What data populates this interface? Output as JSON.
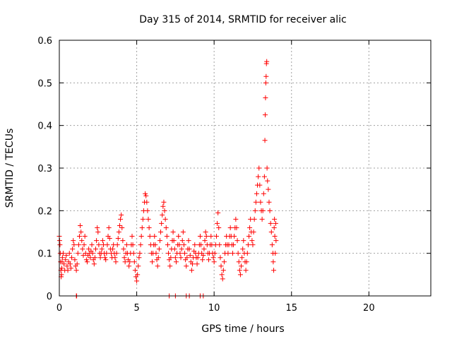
{
  "chart_data": {
    "type": "scatter",
    "title": "Day 315 of 2014, SRMTID for receiver alic",
    "xlabel": "GPS time / hours",
    "ylabel": "SRMTID / TECUs",
    "xlim": [
      0,
      24
    ],
    "ylim": [
      0,
      0.6
    ],
    "xticks": [
      0,
      5,
      10,
      15,
      20
    ],
    "yticks": [
      0,
      0.1,
      0.2,
      0.3,
      0.4,
      0.5,
      0.6
    ],
    "xtick_labels": [
      "0",
      "5",
      "10",
      "15",
      "20"
    ],
    "ytick_labels": [
      "0",
      "0.1",
      "0.2",
      "0.3",
      "0.4",
      "0.5",
      "0.6"
    ],
    "grid": true,
    "marker": "+",
    "color": "#ff0000",
    "series": [
      {
        "name": "SRMTID",
        "points": [
          [
            0.0,
            0.14
          ],
          [
            0.02,
            0.13
          ],
          [
            0.04,
            0.12
          ],
          [
            0.06,
            0.1
          ],
          [
            0.08,
            0.08
          ],
          [
            0.1,
            0.06
          ],
          [
            0.12,
            0.045
          ],
          [
            0.14,
            0.05
          ],
          [
            0.16,
            0.065
          ],
          [
            0.18,
            0.08
          ],
          [
            0.2,
            0.09
          ],
          [
            0.25,
            0.1
          ],
          [
            0.3,
            0.075
          ],
          [
            0.35,
            0.06
          ],
          [
            0.4,
            0.085
          ],
          [
            0.45,
            0.095
          ],
          [
            0.5,
            0.07
          ],
          [
            0.55,
            0.06
          ],
          [
            0.6,
            0.08
          ],
          [
            0.65,
            0.1
          ],
          [
            0.7,
            0.075
          ],
          [
            0.75,
            0.065
          ],
          [
            0.8,
            0.09
          ],
          [
            0.85,
            0.11
          ],
          [
            0.9,
            0.13
          ],
          [
            0.95,
            0.12
          ],
          [
            1.0,
            0.085
          ],
          [
            1.05,
            0.07
          ],
          [
            1.1,
            0.06
          ],
          [
            1.15,
            0.075
          ],
          [
            1.2,
            0.1
          ],
          [
            1.25,
            0.12
          ],
          [
            1.3,
            0.14
          ],
          [
            1.35,
            0.165
          ],
          [
            1.4,
            0.15
          ],
          [
            1.45,
            0.13
          ],
          [
            1.5,
            0.11
          ],
          [
            1.55,
            0.095
          ],
          [
            1.6,
            0.12
          ],
          [
            1.65,
            0.14
          ],
          [
            1.7,
            0.1
          ],
          [
            1.75,
            0.085
          ],
          [
            1.8,
            0.08
          ],
          [
            1.85,
            0.095
          ],
          [
            1.9,
            0.11
          ],
          [
            1.95,
            0.1
          ],
          [
            2.0,
            0.09
          ],
          [
            2.05,
            0.105
          ],
          [
            2.1,
            0.12
          ],
          [
            2.15,
            0.1
          ],
          [
            2.2,
            0.085
          ],
          [
            2.25,
            0.075
          ],
          [
            2.3,
            0.09
          ],
          [
            2.35,
            0.11
          ],
          [
            2.4,
            0.13
          ],
          [
            2.45,
            0.16
          ],
          [
            2.5,
            0.15
          ],
          [
            2.55,
            0.12
          ],
          [
            2.6,
            0.1
          ],
          [
            2.65,
            0.09
          ],
          [
            2.7,
            0.1
          ],
          [
            2.75,
            0.11
          ],
          [
            2.8,
            0.13
          ],
          [
            2.85,
            0.12
          ],
          [
            2.9,
            0.1
          ],
          [
            2.95,
            0.09
          ],
          [
            3.0,
            0.085
          ],
          [
            3.05,
            0.1
          ],
          [
            3.1,
            0.12
          ],
          [
            3.15,
            0.14
          ],
          [
            3.2,
            0.16
          ],
          [
            3.25,
            0.135
          ],
          [
            3.3,
            0.11
          ],
          [
            3.35,
            0.1
          ],
          [
            3.4,
            0.09
          ],
          [
            3.45,
            0.11
          ],
          [
            3.5,
            0.12
          ],
          [
            3.55,
            0.1
          ],
          [
            3.6,
            0.09
          ],
          [
            3.65,
            0.08
          ],
          [
            3.7,
            0.1
          ],
          [
            3.75,
            0.12
          ],
          [
            3.8,
            0.135
          ],
          [
            3.85,
            0.15
          ],
          [
            3.9,
            0.165
          ],
          [
            3.95,
            0.18
          ],
          [
            4.0,
            0.19
          ],
          [
            4.05,
            0.16
          ],
          [
            4.1,
            0.13
          ],
          [
            4.15,
            0.11
          ],
          [
            4.2,
            0.09
          ],
          [
            4.25,
            0.08
          ],
          [
            4.3,
            0.1
          ],
          [
            4.35,
            0.12
          ],
          [
            4.4,
            0.1
          ],
          [
            4.45,
            0.085
          ],
          [
            4.5,
            0.07
          ],
          [
            4.55,
            0.08
          ],
          [
            4.6,
            0.1
          ],
          [
            4.65,
            0.12
          ],
          [
            4.7,
            0.14
          ],
          [
            4.75,
            0.12
          ],
          [
            4.8,
            0.1
          ],
          [
            4.85,
            0.08
          ],
          [
            4.9,
            0.06
          ],
          [
            4.95,
            0.045
          ],
          [
            5.0,
            0.035
          ],
          [
            5.05,
            0.05
          ],
          [
            5.1,
            0.07
          ],
          [
            5.15,
            0.09
          ],
          [
            5.2,
            0.1
          ],
          [
            5.25,
            0.12
          ],
          [
            5.3,
            0.14
          ],
          [
            5.35,
            0.16
          ],
          [
            5.4,
            0.18
          ],
          [
            5.45,
            0.2
          ],
          [
            5.5,
            0.22
          ],
          [
            5.55,
            0.24
          ],
          [
            5.6,
            0.235
          ],
          [
            5.65,
            0.22
          ],
          [
            5.7,
            0.2
          ],
          [
            5.75,
            0.18
          ],
          [
            5.8,
            0.16
          ],
          [
            5.85,
            0.14
          ],
          [
            5.9,
            0.12
          ],
          [
            5.95,
            0.1
          ],
          [
            6.0,
            0.08
          ],
          [
            6.05,
            0.1
          ],
          [
            6.1,
            0.12
          ],
          [
            6.15,
            0.14
          ],
          [
            6.2,
            0.12
          ],
          [
            6.25,
            0.1
          ],
          [
            6.3,
            0.085
          ],
          [
            6.35,
            0.07
          ],
          [
            6.4,
            0.09
          ],
          [
            6.45,
            0.11
          ],
          [
            6.5,
            0.13
          ],
          [
            6.55,
            0.15
          ],
          [
            6.6,
            0.17
          ],
          [
            6.65,
            0.19
          ],
          [
            6.7,
            0.21
          ],
          [
            6.75,
            0.22
          ],
          [
            6.8,
            0.2
          ],
          [
            6.85,
            0.18
          ],
          [
            6.9,
            0.16
          ],
          [
            6.95,
            0.14
          ],
          [
            7.0,
            0.12
          ],
          [
            7.05,
            0.1
          ],
          [
            7.1,
            0.085
          ],
          [
            7.15,
            0.07
          ],
          [
            7.2,
            0.09
          ],
          [
            7.25,
            0.11
          ],
          [
            7.3,
            0.13
          ],
          [
            7.35,
            0.15
          ],
          [
            7.4,
            0.13
          ],
          [
            7.45,
            0.11
          ],
          [
            7.5,
            0.09
          ],
          [
            7.55,
            0.08
          ],
          [
            7.6,
            0.1
          ],
          [
            7.65,
            0.12
          ],
          [
            7.7,
            0.14
          ],
          [
            7.75,
            0.12
          ],
          [
            7.8,
            0.1
          ],
          [
            7.85,
            0.09
          ],
          [
            7.9,
            0.11
          ],
          [
            7.95,
            0.13
          ],
          [
            8.0,
            0.15
          ],
          [
            8.05,
            0.12
          ],
          [
            8.1,
            0.1
          ],
          [
            8.15,
            0.085
          ],
          [
            8.2,
            0.07
          ],
          [
            8.25,
            0.09
          ],
          [
            8.3,
            0.11
          ],
          [
            8.35,
            0.13
          ],
          [
            8.4,
            0.11
          ],
          [
            8.45,
            0.095
          ],
          [
            8.5,
            0.08
          ],
          [
            8.55,
            0.06
          ],
          [
            8.6,
            0.075
          ],
          [
            8.65,
            0.09
          ],
          [
            8.7,
            0.105
          ],
          [
            8.75,
            0.12
          ],
          [
            8.8,
            0.1
          ],
          [
            8.85,
            0.09
          ],
          [
            8.9,
            0.075
          ],
          [
            8.95,
            0.09
          ],
          [
            9.0,
            0.1
          ],
          [
            9.05,
            0.12
          ],
          [
            9.1,
            0.14
          ],
          [
            9.15,
            0.12
          ],
          [
            9.2,
            0.1
          ],
          [
            9.25,
            0.085
          ],
          [
            9.3,
            0.095
          ],
          [
            9.35,
            0.11
          ],
          [
            9.4,
            0.13
          ],
          [
            9.45,
            0.15
          ],
          [
            9.5,
            0.14
          ],
          [
            9.55,
            0.12
          ],
          [
            9.6,
            0.1
          ],
          [
            9.65,
            0.085
          ],
          [
            9.7,
            0.1
          ],
          [
            9.75,
            0.12
          ],
          [
            9.8,
            0.14
          ],
          [
            9.85,
            0.12
          ],
          [
            9.9,
            0.1
          ],
          [
            9.95,
            0.09
          ],
          [
            10.0,
            0.08
          ],
          [
            10.05,
            0.1
          ],
          [
            10.1,
            0.12
          ],
          [
            10.15,
            0.14
          ],
          [
            10.2,
            0.17
          ],
          [
            10.25,
            0.195
          ],
          [
            10.3,
            0.16
          ],
          [
            10.35,
            0.12
          ],
          [
            10.4,
            0.09
          ],
          [
            10.45,
            0.07
          ],
          [
            10.5,
            0.05
          ],
          [
            10.55,
            0.04
          ],
          [
            10.6,
            0.06
          ],
          [
            10.65,
            0.08
          ],
          [
            10.7,
            0.1
          ],
          [
            10.75,
            0.12
          ],
          [
            10.8,
            0.14
          ],
          [
            10.85,
            0.12
          ],
          [
            10.9,
            0.1
          ],
          [
            10.95,
            0.12
          ],
          [
            11.0,
            0.14
          ],
          [
            11.05,
            0.16
          ],
          [
            11.1,
            0.14
          ],
          [
            11.15,
            0.12
          ],
          [
            11.2,
            0.1
          ],
          [
            11.25,
            0.12
          ],
          [
            11.3,
            0.14
          ],
          [
            11.35,
            0.16
          ],
          [
            11.4,
            0.18
          ],
          [
            11.45,
            0.16
          ],
          [
            11.5,
            0.13
          ],
          [
            11.55,
            0.1
          ],
          [
            11.6,
            0.08
          ],
          [
            11.65,
            0.06
          ],
          [
            11.7,
            0.05
          ],
          [
            11.75,
            0.07
          ],
          [
            11.8,
            0.09
          ],
          [
            11.85,
            0.11
          ],
          [
            11.9,
            0.13
          ],
          [
            11.95,
            0.1
          ],
          [
            12.0,
            0.08
          ],
          [
            12.05,
            0.06
          ],
          [
            12.1,
            0.08
          ],
          [
            12.15,
            0.1
          ],
          [
            12.2,
            0.12
          ],
          [
            12.25,
            0.14
          ],
          [
            12.3,
            0.16
          ],
          [
            12.35,
            0.18
          ],
          [
            12.4,
            0.15
          ],
          [
            12.45,
            0.13
          ],
          [
            12.5,
            0.12
          ],
          [
            12.55,
            0.15
          ],
          [
            12.6,
            0.18
          ],
          [
            12.65,
            0.2
          ],
          [
            12.7,
            0.22
          ],
          [
            12.75,
            0.24
          ],
          [
            12.8,
            0.26
          ],
          [
            12.85,
            0.28
          ],
          [
            12.9,
            0.3
          ],
          [
            12.95,
            0.26
          ],
          [
            13.0,
            0.22
          ],
          [
            13.05,
            0.2
          ],
          [
            13.1,
            0.18
          ],
          [
            13.15,
            0.2
          ],
          [
            13.2,
            0.24
          ],
          [
            13.25,
            0.28
          ],
          [
            13.28,
            0.365
          ],
          [
            13.3,
            0.425
          ],
          [
            13.32,
            0.465
          ],
          [
            13.34,
            0.5
          ],
          [
            13.36,
            0.515
          ],
          [
            13.38,
            0.545
          ],
          [
            13.4,
            0.55
          ],
          [
            13.42,
            0.3
          ],
          [
            13.45,
            0.27
          ],
          [
            13.5,
            0.25
          ],
          [
            13.55,
            0.22
          ],
          [
            13.6,
            0.2
          ],
          [
            13.65,
            0.17
          ],
          [
            13.7,
            0.15
          ],
          [
            13.75,
            0.12
          ],
          [
            13.8,
            0.1
          ],
          [
            13.82,
            0.08
          ],
          [
            13.85,
            0.06
          ],
          [
            13.88,
            0.16
          ],
          [
            13.9,
            0.18
          ],
          [
            13.92,
            0.14
          ],
          [
            13.95,
            0.1
          ],
          [
            13.98,
            0.17
          ],
          [
            14.0,
            0.13
          ],
          [
            1.1,
            0.0
          ],
          [
            1.12,
            0.0
          ],
          [
            7.1,
            0.0
          ],
          [
            7.5,
            0.0
          ],
          [
            8.2,
            0.0
          ],
          [
            8.4,
            0.0
          ],
          [
            9.1,
            0.0
          ],
          [
            9.3,
            0.0
          ]
        ]
      }
    ]
  }
}
